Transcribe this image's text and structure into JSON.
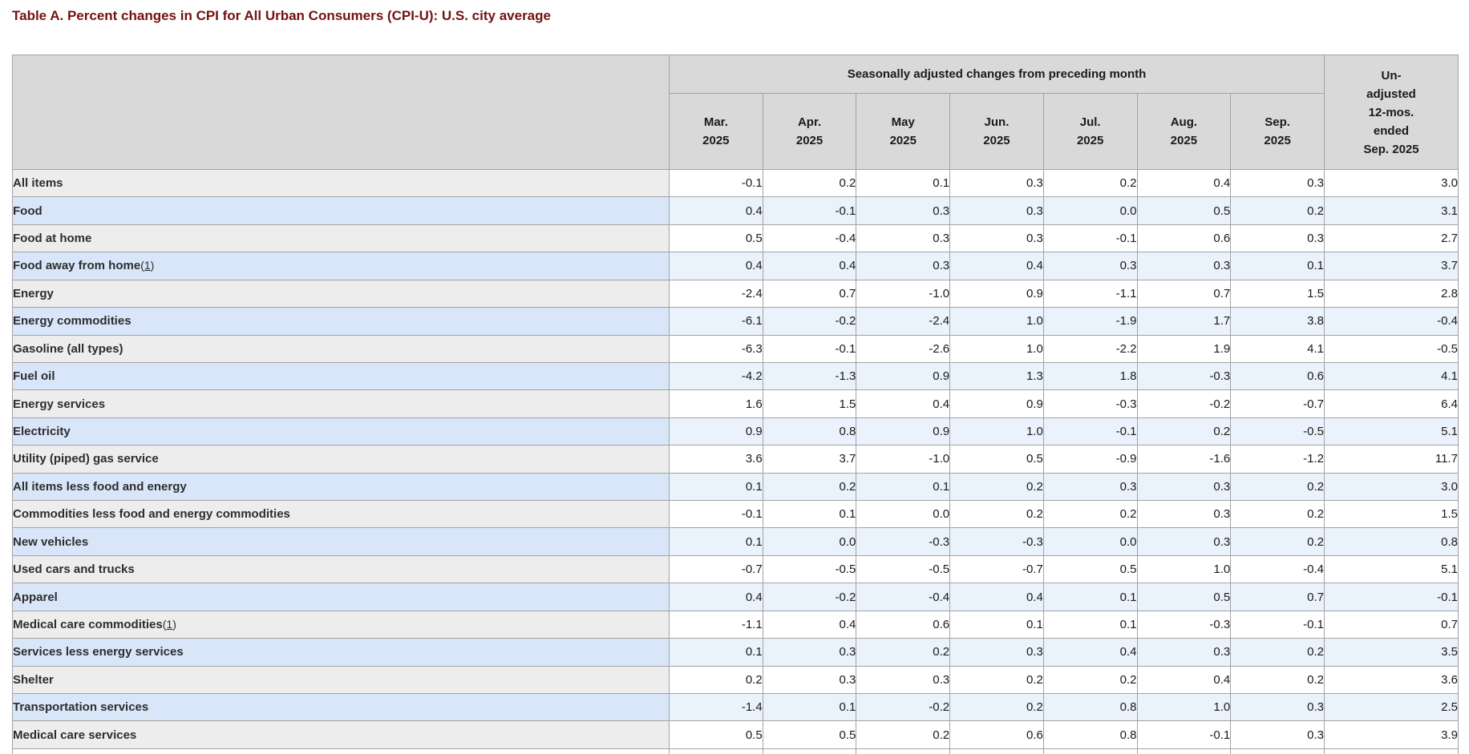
{
  "title": "Table A. Percent changes in CPI for All Urban Consumers (CPI-U): U.S. city average",
  "colors": {
    "title_text": "#731111",
    "header_bg": "#d9d9d9",
    "row_label_gray": "#ededed",
    "row_label_blue": "#d9e6f9",
    "row_data_blue": "#eaf2fc",
    "border": "#a3a3a3",
    "label_text": "#2d2d2d",
    "number_text": "#1a1a1a"
  },
  "table": {
    "group_header": "Seasonally adjusted changes from preceding month",
    "unadjusted_lines": [
      "Un-",
      "adjusted",
      "12-mos.",
      "ended",
      "Sep. 2025"
    ],
    "months": [
      {
        "m": "Mar.",
        "y": "2025"
      },
      {
        "m": "Apr.",
        "y": "2025"
      },
      {
        "m": "May",
        "y": "2025"
      },
      {
        "m": "Jun.",
        "y": "2025"
      },
      {
        "m": "Jul.",
        "y": "2025"
      },
      {
        "m": "Aug.",
        "y": "2025"
      },
      {
        "m": "Sep.",
        "y": "2025"
      }
    ],
    "rows": [
      {
        "label": "All items",
        "indent": 0,
        "values": [
          "-0.1",
          "0.2",
          "0.1",
          "0.3",
          "0.2",
          "0.4",
          "0.3"
        ],
        "yoy": "3.0"
      },
      {
        "label": "Food",
        "indent": 1,
        "values": [
          "0.4",
          "-0.1",
          "0.3",
          "0.3",
          "0.0",
          "0.5",
          "0.2"
        ],
        "yoy": "3.1"
      },
      {
        "label": "Food at home",
        "indent": 2,
        "values": [
          "0.5",
          "-0.4",
          "0.3",
          "0.3",
          "-0.1",
          "0.6",
          "0.3"
        ],
        "yoy": "2.7"
      },
      {
        "label": "Food away from home",
        "indent": 2,
        "footnote": "1",
        "values": [
          "0.4",
          "0.4",
          "0.3",
          "0.4",
          "0.3",
          "0.3",
          "0.1"
        ],
        "yoy": "3.7"
      },
      {
        "label": "Energy",
        "indent": 1,
        "values": [
          "-2.4",
          "0.7",
          "-1.0",
          "0.9",
          "-1.1",
          "0.7",
          "1.5"
        ],
        "yoy": "2.8"
      },
      {
        "label": "Energy commodities",
        "indent": 2,
        "values": [
          "-6.1",
          "-0.2",
          "-2.4",
          "1.0",
          "-1.9",
          "1.7",
          "3.8"
        ],
        "yoy": "-0.4"
      },
      {
        "label": "Gasoline (all types)",
        "indent": 3,
        "values": [
          "-6.3",
          "-0.1",
          "-2.6",
          "1.0",
          "-2.2",
          "1.9",
          "4.1"
        ],
        "yoy": "-0.5"
      },
      {
        "label": "Fuel oil",
        "indent": 3,
        "values": [
          "-4.2",
          "-1.3",
          "0.9",
          "1.3",
          "1.8",
          "-0.3",
          "0.6"
        ],
        "yoy": "4.1"
      },
      {
        "label": "Energy services",
        "indent": 2,
        "values": [
          "1.6",
          "1.5",
          "0.4",
          "0.9",
          "-0.3",
          "-0.2",
          "-0.7"
        ],
        "yoy": "6.4"
      },
      {
        "label": "Electricity",
        "indent": 3,
        "values": [
          "0.9",
          "0.8",
          "0.9",
          "1.0",
          "-0.1",
          "0.2",
          "-0.5"
        ],
        "yoy": "5.1"
      },
      {
        "label": "Utility (piped) gas service",
        "indent": 3,
        "values": [
          "3.6",
          "3.7",
          "-1.0",
          "0.5",
          "-0.9",
          "-1.6",
          "-1.2"
        ],
        "yoy": "11.7"
      },
      {
        "label": "All items less food and energy",
        "indent": 1,
        "values": [
          "0.1",
          "0.2",
          "0.1",
          "0.2",
          "0.3",
          "0.3",
          "0.2"
        ],
        "yoy": "3.0"
      },
      {
        "label": "Commodities less food and energy commodities",
        "indent": 2,
        "values": [
          "-0.1",
          "0.1",
          "0.0",
          "0.2",
          "0.2",
          "0.3",
          "0.2"
        ],
        "yoy": "1.5"
      },
      {
        "label": "New vehicles",
        "indent": 3,
        "values": [
          "0.1",
          "0.0",
          "-0.3",
          "-0.3",
          "0.0",
          "0.3",
          "0.2"
        ],
        "yoy": "0.8"
      },
      {
        "label": "Used cars and trucks",
        "indent": 3,
        "values": [
          "-0.7",
          "-0.5",
          "-0.5",
          "-0.7",
          "0.5",
          "1.0",
          "-0.4"
        ],
        "yoy": "5.1"
      },
      {
        "label": "Apparel",
        "indent": 3,
        "values": [
          "0.4",
          "-0.2",
          "-0.4",
          "0.4",
          "0.1",
          "0.5",
          "0.7"
        ],
        "yoy": "-0.1"
      },
      {
        "label": "Medical care commodities",
        "indent": 3,
        "footnote": "1",
        "values": [
          "-1.1",
          "0.4",
          "0.6",
          "0.1",
          "0.1",
          "-0.3",
          "-0.1"
        ],
        "yoy": "0.7"
      },
      {
        "label": "Services less energy services",
        "indent": 2,
        "values": [
          "0.1",
          "0.3",
          "0.2",
          "0.3",
          "0.4",
          "0.3",
          "0.2"
        ],
        "yoy": "3.5"
      },
      {
        "label": "Shelter",
        "indent": 3,
        "values": [
          "0.2",
          "0.3",
          "0.3",
          "0.2",
          "0.2",
          "0.4",
          "0.2"
        ],
        "yoy": "3.6"
      },
      {
        "label": "Transportation services",
        "indent": 3,
        "values": [
          "-1.4",
          "0.1",
          "-0.2",
          "0.2",
          "0.8",
          "1.0",
          "0.3"
        ],
        "yoy": "2.5"
      },
      {
        "label": "Medical care services",
        "indent": 3,
        "values": [
          "0.5",
          "0.5",
          "0.2",
          "0.6",
          "0.8",
          "-0.1",
          "0.3"
        ],
        "yoy": "3.9"
      }
    ]
  }
}
